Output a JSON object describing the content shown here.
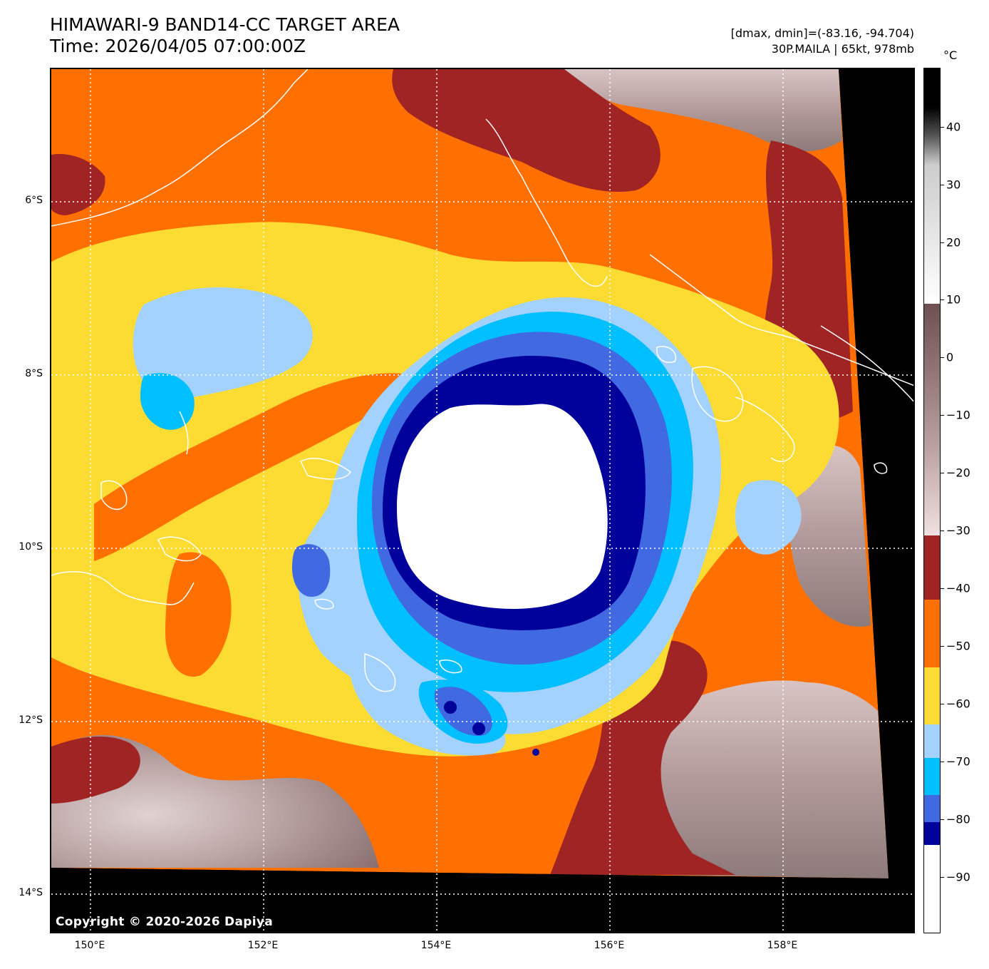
{
  "header": {
    "title_line1": "HIMAWARI-9 BAND14-CC TARGET AREA",
    "title_line2": "Time: 2026/04/05 07:00:00Z",
    "stats_line": "[dmax, dmin]=(-83.16, -94.704)",
    "storm_line": "30P.MAILA | 65kt, 978mb"
  },
  "map": {
    "lat_labels": [
      "6°S",
      "8°S",
      "10°S",
      "12°S",
      "14°S"
    ],
    "lon_labels": [
      "150°E",
      "152°E",
      "154°E",
      "156°E",
      "158°E"
    ],
    "copyright": "Copyright © 2020-2026 Dapiya"
  },
  "colorbar": {
    "unit": "°C",
    "tick_labels": [
      "40",
      "30",
      "20",
      "10",
      "0",
      "−10",
      "−20",
      "−30",
      "−40",
      "−50",
      "−60",
      "−70",
      "−80",
      "−90"
    ],
    "colors": {
      "white_core": "#ffffff",
      "dark_blue": "#00009a",
      "royal_blue": "#4169e1",
      "deep_sky_blue": "#00bfff",
      "light_sky_blue": "#a3d2ff",
      "gold": "#fcdc32",
      "orange": "#ff7000",
      "brown_red": "#a02424",
      "warm_gray": "#8a6a6a",
      "black": "#000000"
    }
  }
}
